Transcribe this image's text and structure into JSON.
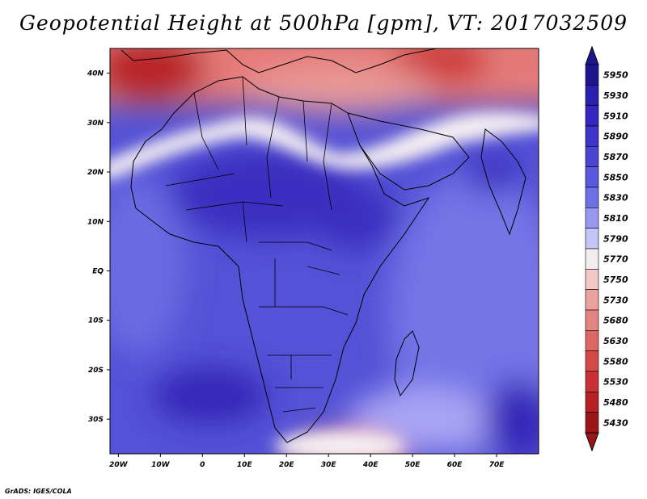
{
  "title": "Geopotential Height at 500hPa [gpm], VT: 2017032509",
  "credit": "GrADS: IGES/COLA",
  "map": {
    "region": "Africa",
    "lat_labels": [
      "40N",
      "30N",
      "20N",
      "10N",
      "EQ",
      "10S",
      "20S",
      "30S"
    ],
    "lon_labels": [
      "20W",
      "10W",
      "0",
      "10E",
      "20E",
      "30E",
      "40E",
      "50E",
      "60E",
      "70E"
    ],
    "lat_values": [
      40,
      30,
      20,
      10,
      0,
      -10,
      -20,
      -30
    ],
    "lon_values": [
      -20,
      -10,
      0,
      10,
      20,
      30,
      40,
      50,
      60,
      70
    ],
    "lon_range": [
      -22,
      80
    ],
    "lat_range": [
      -37,
      45
    ]
  },
  "colorbar": {
    "labels": [
      "5950",
      "5930",
      "5910",
      "5890",
      "5870",
      "5850",
      "5830",
      "5810",
      "5790",
      "5770",
      "5750",
      "5730",
      "5680",
      "5630",
      "5580",
      "5530",
      "5480",
      "5430"
    ],
    "colors": [
      "#1e1490",
      "#2a1fae",
      "#3526bd",
      "#3f33c8",
      "#4b44d2",
      "#5a58dc",
      "#6e70e6",
      "#9898f0",
      "#c4c4f8",
      "#f2ecf0",
      "#f4c8c6",
      "#eca3a0",
      "#e48482",
      "#dc6664",
      "#d44a48",
      "#c83032",
      "#b42024",
      "#9a1618"
    ],
    "top_color": "#1e1490",
    "bottom_color": "#9a1618"
  }
}
